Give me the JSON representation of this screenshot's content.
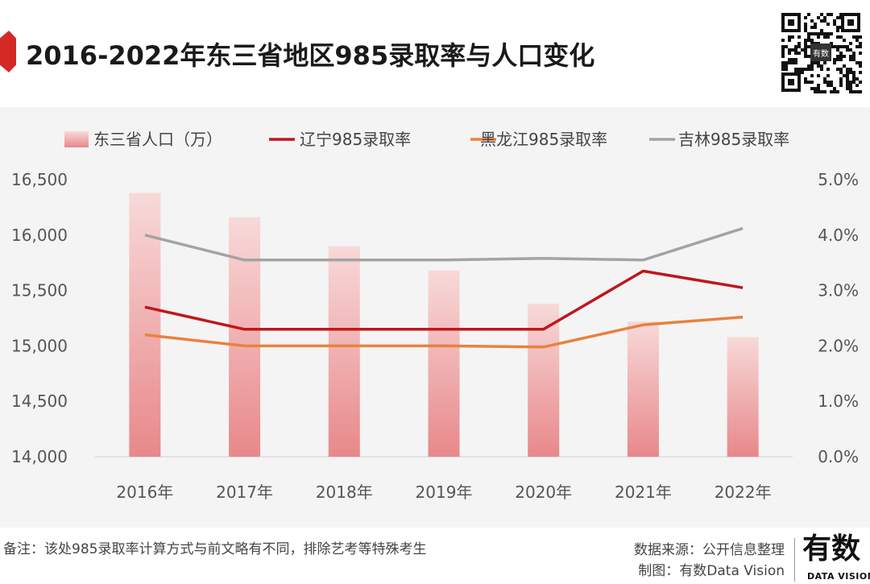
{
  "header": {
    "title": "2016-2022年东三省地区985录取率与人口变化"
  },
  "qr": {
    "center_label": "有数"
  },
  "chart_data": {
    "type": "bar",
    "categories": [
      "2016年",
      "2017年",
      "2018年",
      "2019年",
      "2020年",
      "2021年",
      "2022年"
    ],
    "left_axis": {
      "min": 14000,
      "max": 16500,
      "ticks": [
        "14,000",
        "14,500",
        "15,000",
        "15,500",
        "16,000",
        "16,500"
      ],
      "tick_values": [
        14000,
        14500,
        15000,
        15500,
        16000,
        16500
      ]
    },
    "right_axis": {
      "min": 0,
      "max": 5,
      "ticks": [
        "0.0%",
        "1.0%",
        "2.0%",
        "3.0%",
        "4.0%",
        "5.0%"
      ],
      "tick_values": [
        0,
        1,
        2,
        3,
        4,
        5
      ]
    },
    "legend": [
      "东三省人口（万）",
      "辽宁985录取率",
      "黑龙江985录取率",
      "吉林985录取率"
    ],
    "bar_series": {
      "name": "东三省人口（万）",
      "values": [
        16380,
        16160,
        15900,
        15680,
        15380,
        15220,
        15080
      ],
      "color": "#e8888a"
    },
    "line_series": [
      {
        "name": "辽宁985录取率",
        "values": [
          2.7,
          2.3,
          2.3,
          2.3,
          2.3,
          3.35,
          3.05
        ],
        "color": "#c0161c"
      },
      {
        "name": "黑龙江985录取率",
        "values": [
          2.2,
          2.0,
          2.0,
          2.0,
          1.98,
          2.38,
          2.52
        ],
        "color": "#e8823e"
      },
      {
        "name": "吉林985录取率",
        "values": [
          4.0,
          3.55,
          3.55,
          3.55,
          3.58,
          3.55,
          4.12
        ],
        "color": "#a3a3a3"
      }
    ]
  },
  "footer": {
    "note": "备注：该处985录取率计算方式与前文略有不同，排除艺考等特殊考生",
    "source": "数据来源：公开信息整理",
    "credit": "制图：有数Data Vision",
    "brand": "有数",
    "brand_sub": "DATA VISION"
  }
}
